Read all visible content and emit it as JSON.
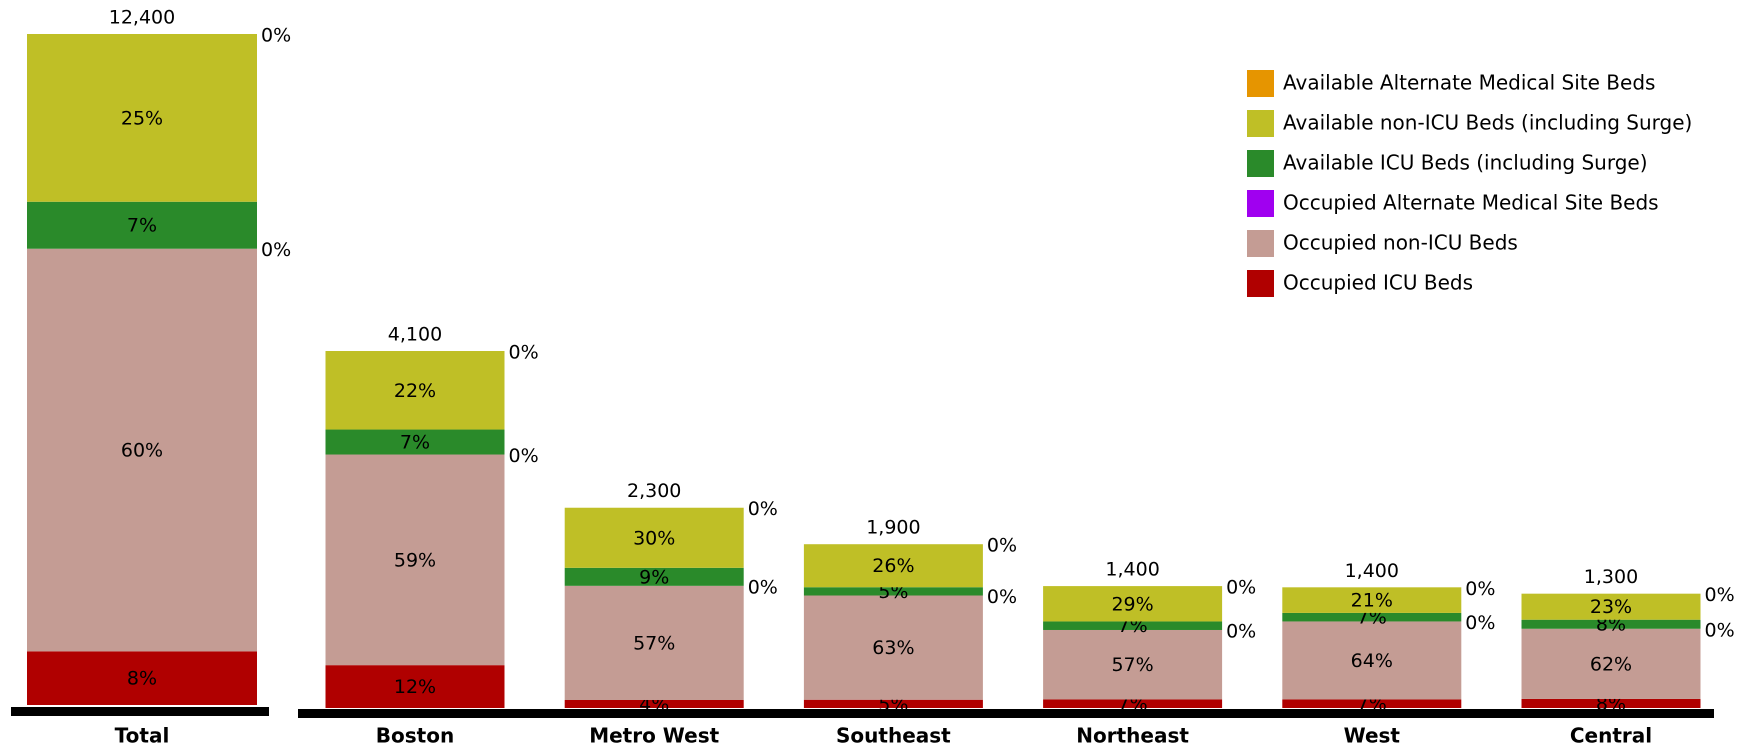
{
  "chart_data": {
    "type": "stacked_bar",
    "categories": [
      "Total",
      "Boston",
      "Metro West",
      "Southeast",
      "Northeast",
      "West",
      "Central"
    ],
    "totals": {
      "values": [
        12400,
        4100,
        2300,
        1900,
        1400,
        1400,
        1300
      ],
      "value_labels": [
        "12,400",
        "4,100",
        "2,300",
        "1,900",
        "1,400",
        "1,400",
        "1,300"
      ]
    },
    "series": [
      {
        "name": "Occupied ICU Beds",
        "color": "#b00000",
        "values": [
          8,
          12,
          4,
          5,
          7,
          7,
          8
        ],
        "value_labels": [
          "8%",
          "12%",
          "4%",
          "5%",
          "7%",
          "7%",
          "8%"
        ]
      },
      {
        "name": "Occupied non-ICU Beds",
        "color": "#c49c94",
        "values": [
          60,
          59,
          57,
          63,
          57,
          64,
          62
        ],
        "value_labels": [
          "60%",
          "59%",
          "57%",
          "63%",
          "57%",
          "64%",
          "62%"
        ]
      },
      {
        "name": "Occupied Alternate Medical Site Beds",
        "color": "#a000f0",
        "values": [
          0,
          0,
          0,
          0,
          0,
          0,
          0
        ],
        "value_labels": [
          "0%",
          "0%",
          "0%",
          "0%",
          "0%",
          "0%",
          "0%"
        ]
      },
      {
        "name": "Available ICU Beds (including Surge)",
        "color": "#2a8a2a",
        "values": [
          7,
          7,
          9,
          5,
          7,
          7,
          8
        ],
        "value_labels": [
          "7%",
          "7%",
          "9%",
          "5%",
          "7%",
          "7%",
          "8%"
        ]
      },
      {
        "name": "Available non-ICU Beds (including Surge)",
        "color": "#bfbf26",
        "values": [
          25,
          22,
          30,
          26,
          29,
          21,
          23
        ],
        "value_labels": [
          "25%",
          "22%",
          "30%",
          "26%",
          "29%",
          "21%",
          "23%"
        ]
      },
      {
        "name": "Available Alternate Medical Site Beds",
        "color": "#e69500",
        "values": [
          0,
          0,
          0,
          0,
          0,
          0,
          0
        ],
        "value_labels": [
          "0%",
          "0%",
          "0%",
          "0%",
          "0%",
          "0%",
          "0%"
        ]
      }
    ]
  }
}
